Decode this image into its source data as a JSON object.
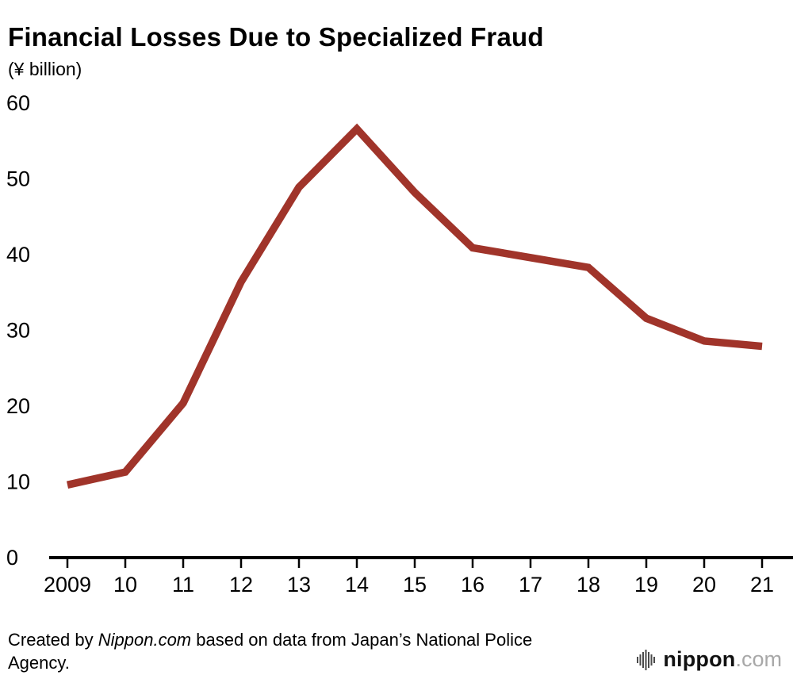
{
  "header": {
    "title": "Financial Losses Due to Specialized Fraud",
    "unit_label": "(¥ billion)"
  },
  "chart_data": {
    "type": "line",
    "title": "Financial Losses Due to Specialized Fraud",
    "xlabel": "",
    "ylabel": "¥ billion",
    "categories": [
      "2009",
      "10",
      "11",
      "12",
      "13",
      "14",
      "15",
      "16",
      "17",
      "18",
      "19",
      "20",
      "21"
    ],
    "values": [
      9.6,
      11.3,
      20.4,
      36.4,
      48.9,
      56.6,
      48.2,
      40.9,
      39.6,
      38.3,
      31.6,
      28.6,
      27.9
    ],
    "ylim": [
      0,
      60
    ],
    "yticks": [
      0,
      10,
      20,
      30,
      40,
      50,
      60
    ],
    "grid": false,
    "legend_position": "none",
    "line_color": "#a0342a",
    "axis_color": "#000000"
  },
  "footer": {
    "credit_prefix": "Created by ",
    "credit_source": "Nippon.com",
    "credit_suffix": " based on data from Japan’s National Police Agency.",
    "logo_text": "nippon",
    "logo_suffix": ".com"
  }
}
